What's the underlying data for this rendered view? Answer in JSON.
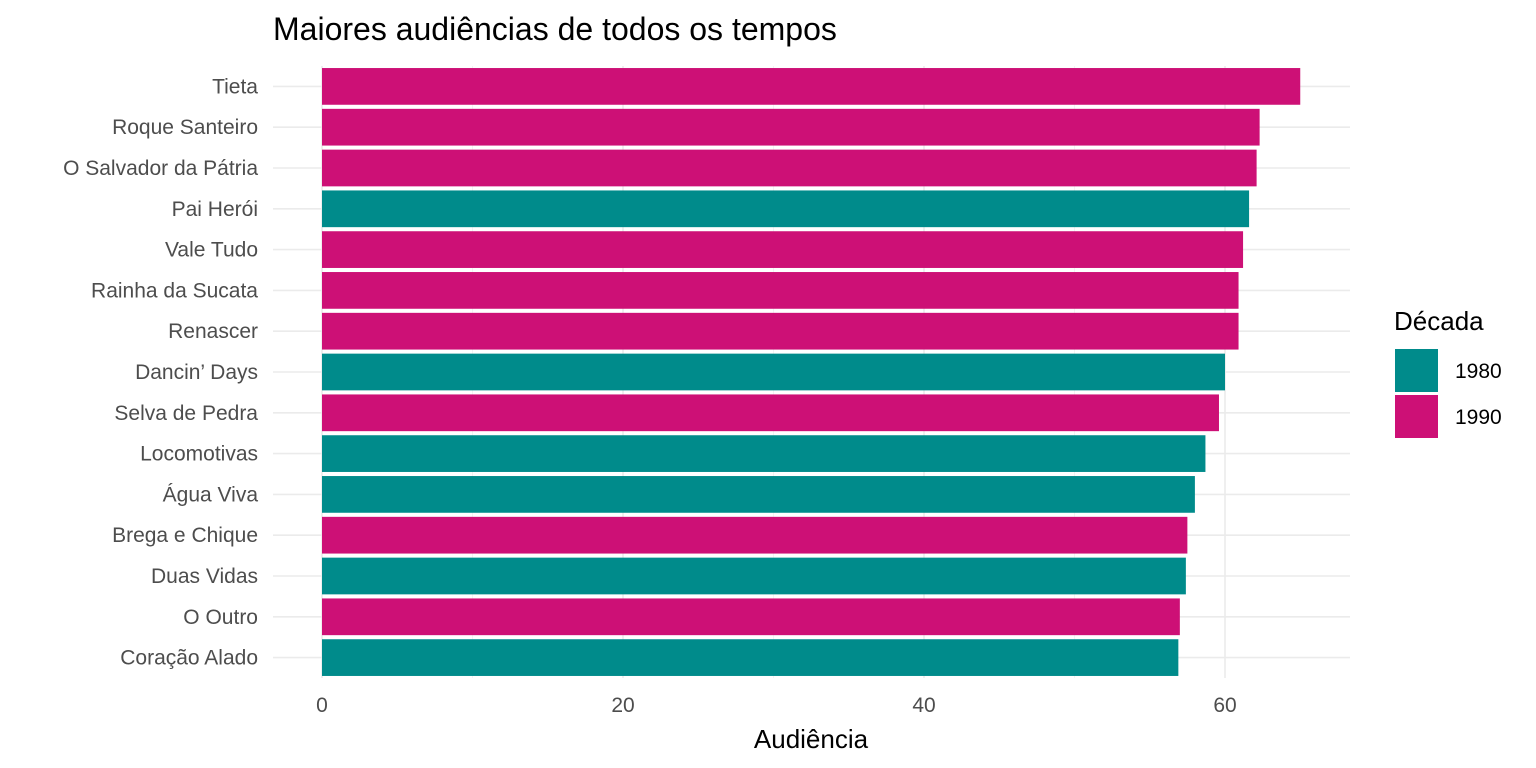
{
  "chart_data": {
    "type": "bar",
    "orientation": "horizontal",
    "title": "Maiores audiências de todos os tempos",
    "xlabel": "Audiência",
    "ylabel": "",
    "xlim": [
      0,
      68.3
    ],
    "xticks": [
      0,
      20,
      40,
      60
    ],
    "grid": true,
    "legend": {
      "title": "Década",
      "position": "right",
      "entries": [
        {
          "label": "1980",
          "color": "#008B8B"
        },
        {
          "label": "1990",
          "color": "#CD1076"
        }
      ]
    },
    "categories": [
      "Tieta",
      "Roque Santeiro",
      "O Salvador da Pátria",
      "Pai Herói",
      "Vale Tudo",
      "Rainha da Sucata",
      "Renascer",
      "Dancin’ Days",
      "Selva de Pedra",
      "Locomotivas",
      "Água Viva",
      "Brega e Chique",
      "Duas Vidas",
      "O Outro",
      "Coração Alado"
    ],
    "values": [
      65,
      62.3,
      62.1,
      61.6,
      61.2,
      60.9,
      60.9,
      60,
      59.6,
      58.7,
      58,
      57.5,
      57.4,
      57,
      56.9
    ],
    "decade": [
      "1990",
      "1990",
      "1990",
      "1980",
      "1990",
      "1990",
      "1990",
      "1980",
      "1990",
      "1980",
      "1980",
      "1990",
      "1980",
      "1990",
      "1980"
    ]
  }
}
